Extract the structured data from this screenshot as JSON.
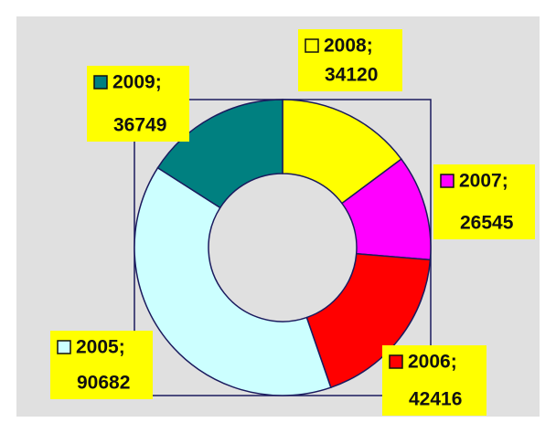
{
  "chart_data": {
    "type": "donut",
    "categories": [
      "2008;",
      "2007;",
      "2006;",
      "2005;",
      "2009;"
    ],
    "values": [
      34120,
      26545,
      42416,
      90682,
      36749
    ],
    "colors": [
      "#ffff00",
      "#ff00ff",
      "#ff0000",
      "#ccffff",
      "#008080"
    ]
  }
}
